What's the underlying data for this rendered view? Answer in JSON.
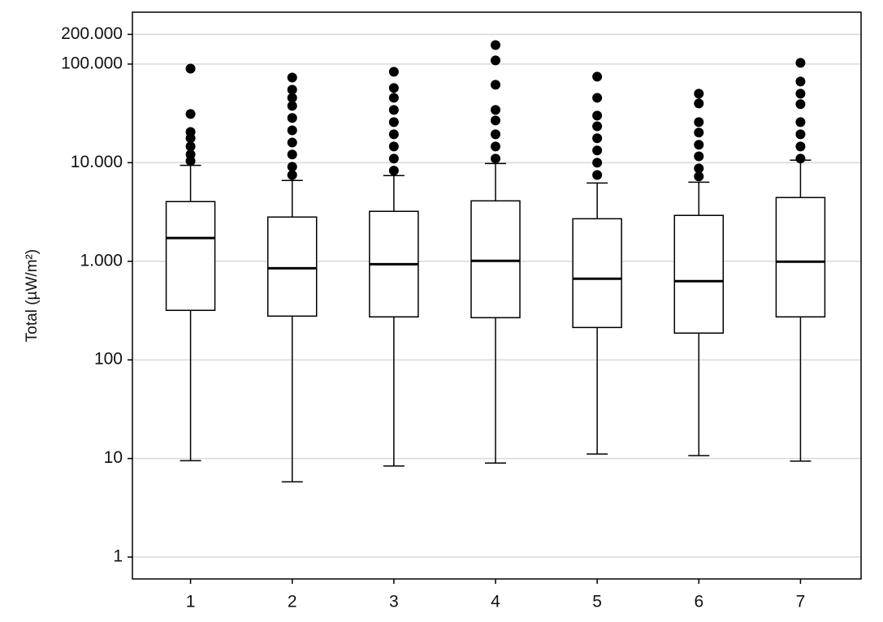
{
  "chart_data": {
    "type": "box",
    "y_label": "Total (µW/m²)",
    "categories": [
      "1",
      "2",
      "3",
      "4",
      "5",
      "6",
      "7"
    ],
    "boxes": [
      {
        "whisker_low": 9.5,
        "q1": 318,
        "median": 1720,
        "q3": 4030,
        "whisker_high": 9400,
        "outliers": [
          90000,
          31200,
          20500,
          17700,
          14600,
          12100,
          10400
        ]
      },
      {
        "whisker_low": 5.8,
        "q1": 278,
        "median": 850,
        "q3": 2810,
        "whisker_high": 6600,
        "outliers": [
          73000,
          55000,
          45500,
          37700,
          28400,
          21300,
          16000,
          12100,
          9100,
          7500
        ]
      },
      {
        "whisker_low": 8.4,
        "q1": 273,
        "median": 935,
        "q3": 3210,
        "whisker_high": 7400,
        "outliers": [
          83500,
          57200,
          45500,
          34300,
          25800,
          19400,
          14600,
          11000,
          8300
        ]
      },
      {
        "whisker_low": 9.0,
        "q1": 268,
        "median": 1010,
        "q3": 4100,
        "whisker_high": 9800,
        "outliers": [
          156000,
          109000,
          61700,
          34300,
          26800,
          19400,
          14600,
          11000
        ]
      },
      {
        "whisker_low": 11.1,
        "q1": 213,
        "median": 665,
        "q3": 2700,
        "whisker_high": 6220,
        "outliers": [
          74500,
          45500,
          30000,
          23400,
          17700,
          13300,
          10000,
          7500
        ]
      },
      {
        "whisker_low": 10.7,
        "q1": 187,
        "median": 629,
        "q3": 2920,
        "whisker_high": 6340,
        "outliers": [
          50100,
          39900,
          25800,
          20200,
          15200,
          11600,
          8750,
          7250
        ]
      },
      {
        "whisker_low": 9.4,
        "q1": 273,
        "median": 991,
        "q3": 4430,
        "whisker_high": 10600,
        "outliers": [
          103000,
          66500,
          50100,
          39200,
          25800,
          19400,
          14600,
          11000
        ]
      }
    ],
    "color": "#000000",
    "box_fill": "#ffffff",
    "log_scale": true,
    "grid": true,
    "ylim": [
      0.6,
      336000
    ],
    "yticks": [
      1,
      10,
      100,
      {
        "value": 1000,
        "label": "1.000"
      },
      {
        "value": 10000,
        "label": "10.000"
      },
      {
        "value": 100000,
        "label": "100.000"
      },
      {
        "value": 200000,
        "label": "200.000"
      }
    ]
  }
}
